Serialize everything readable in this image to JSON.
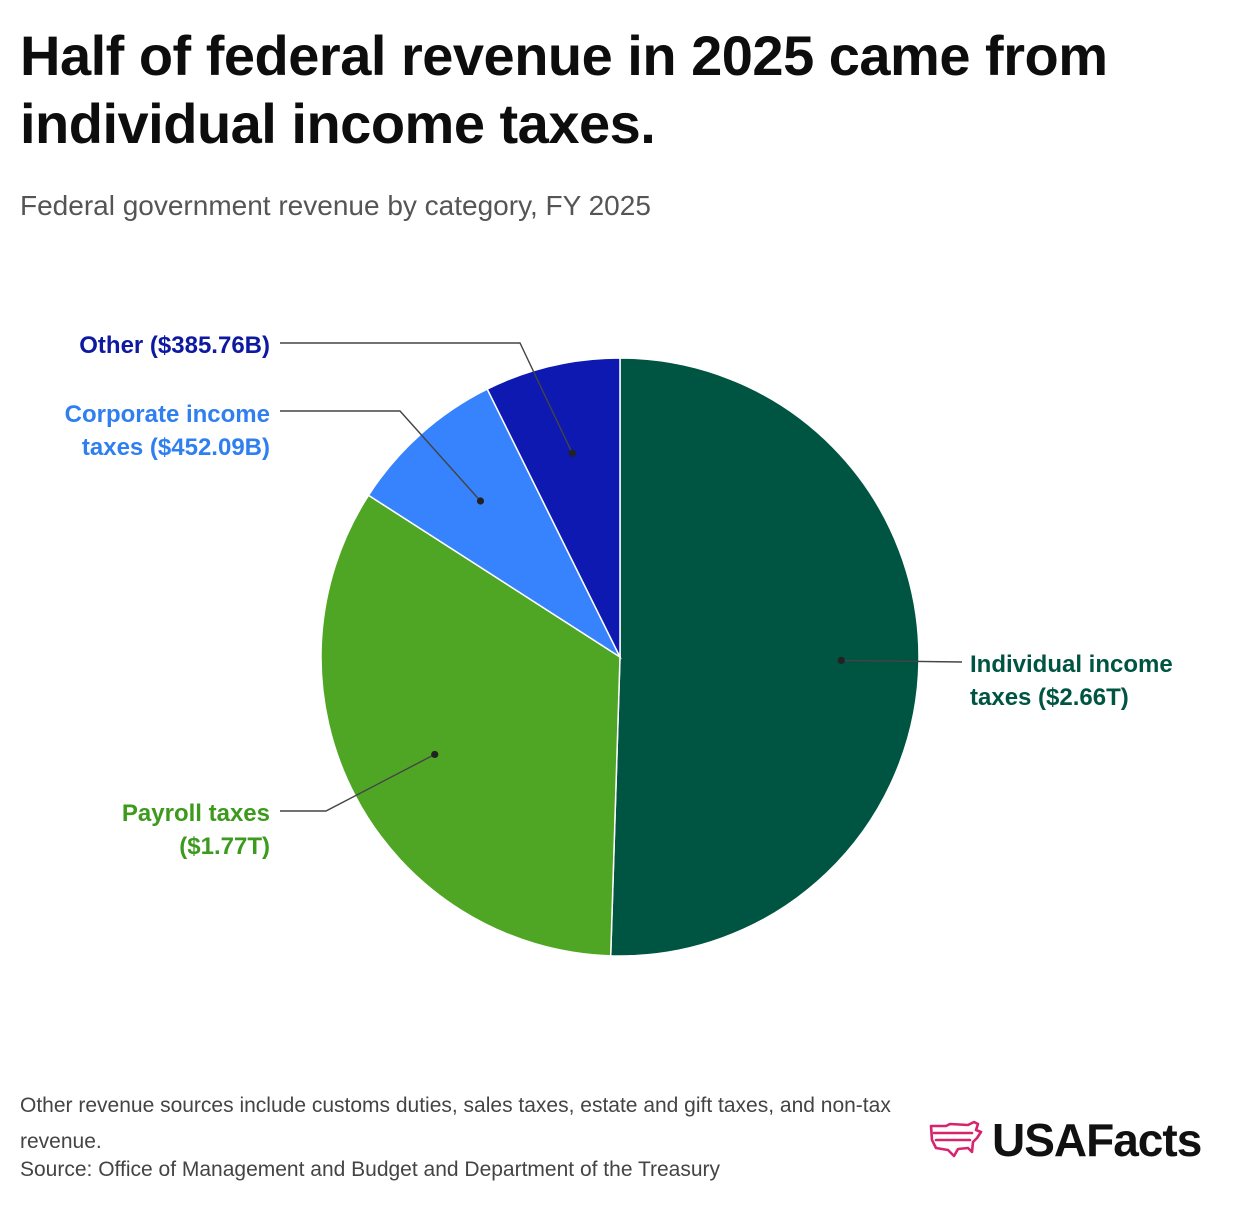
{
  "title": "Half of federal revenue in 2025 came from individual income taxes.",
  "subtitle": "Federal government revenue by category, FY 2025",
  "chart_data": {
    "type": "pie",
    "title": "Half of federal revenue in 2025 came from individual income taxes.",
    "subtitle": "Federal government revenue by category, FY 2025",
    "units": "US dollars",
    "slices": [
      {
        "name": "Individual income taxes",
        "label_lines": [
          "Individual income",
          "taxes ($2.66T)"
        ],
        "value": 2.66,
        "color": "#005442"
      },
      {
        "name": "Payroll taxes",
        "label_lines": [
          "Payroll taxes",
          "($1.77T)"
        ],
        "value": 1.77,
        "color": "#4fa625"
      },
      {
        "name": "Corporate income taxes",
        "label_lines": [
          "Corporate income",
          "taxes ($452.09B)"
        ],
        "value": 0.45209,
        "color": "#3683fd"
      },
      {
        "name": "Other",
        "label_lines": [
          "Other ($385.76B)"
        ],
        "value": 0.38576,
        "color": "#0d19b0"
      }
    ],
    "label_colors": {
      "Individual income taxes": "#005442",
      "Payroll taxes": "#3d9a1d",
      "Corporate income taxes": "#2f7ff0",
      "Other": "#0d19a0"
    },
    "start": "12 o'clock",
    "direction": "clockwise"
  },
  "footnote": "Other revenue sources include customs duties, sales taxes, estate and gift taxes, and non-tax revenue.",
  "source": "Source: Office of Management and Budget and Department of the Treasury",
  "brand": {
    "name": "USAFacts",
    "icon": "usa-map-logo-icon",
    "icon_color": "#d6246e"
  }
}
